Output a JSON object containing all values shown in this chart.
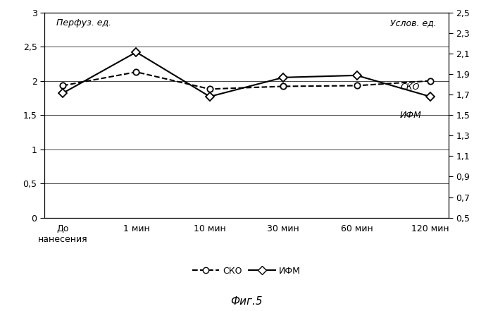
{
  "x_labels": [
    "До\nнанесения",
    "1 мин",
    "10 мин",
    "30 мин",
    "60 мин",
    "120 мин"
  ],
  "sko_values": [
    1.93,
    2.13,
    1.88,
    1.92,
    1.93,
    2.0
  ],
  "ifm_values": [
    1.82,
    2.42,
    1.77,
    2.05,
    2.08,
    1.77
  ],
  "left_ylim": [
    0,
    3.0
  ],
  "left_yticks": [
    0,
    0.5,
    1.0,
    1.5,
    2.0,
    2.5,
    3.0
  ],
  "right_yticks": [
    0.5,
    0.7,
    0.9,
    1.1,
    1.3,
    1.5,
    1.7,
    1.9,
    2.1,
    2.3,
    2.5
  ],
  "left_label": "Перфуз. ед.",
  "right_label": "Услов. ед.",
  "sko_label": "СКО",
  "ifm_label": "ИФМ",
  "fig_label": "Фиг.5",
  "line_color": "black",
  "bg_color": "white",
  "tick_fontsize": 9,
  "label_fontsize": 9,
  "annot_fontsize": 9
}
